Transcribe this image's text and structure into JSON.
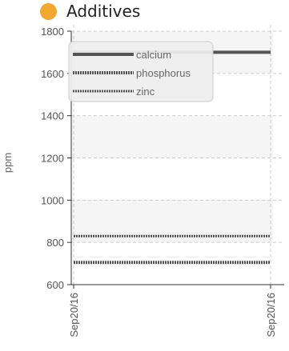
{
  "colors": {
    "title_dot": "#f0a830",
    "series": "#555555",
    "grid": "#cccccc",
    "band": "#f5f5f5",
    "legend_bg": "#eeeeee",
    "legend_border": "#cccccc"
  },
  "chart_data": {
    "type": "line",
    "title": "Additives",
    "ylabel": "ppm",
    "xlabel": "",
    "ylim": [
      600,
      1800
    ],
    "yticks": [
      600,
      800,
      1000,
      1200,
      1400,
      1600,
      1800
    ],
    "x": [
      "Sep20/16",
      "Sep20/16"
    ],
    "grid": true,
    "legend_position": "top-left",
    "series": [
      {
        "name": "calcium",
        "values": [
          1700,
          1700
        ],
        "line_style": "solid",
        "icon": "solid-line"
      },
      {
        "name": "phosphorus",
        "values": [
          705,
          705
        ],
        "line_style": "dotted",
        "icon": "dotted-line"
      },
      {
        "name": "zinc",
        "values": [
          830,
          830
        ],
        "line_style": "dashed",
        "icon": "dashed-line"
      }
    ]
  }
}
